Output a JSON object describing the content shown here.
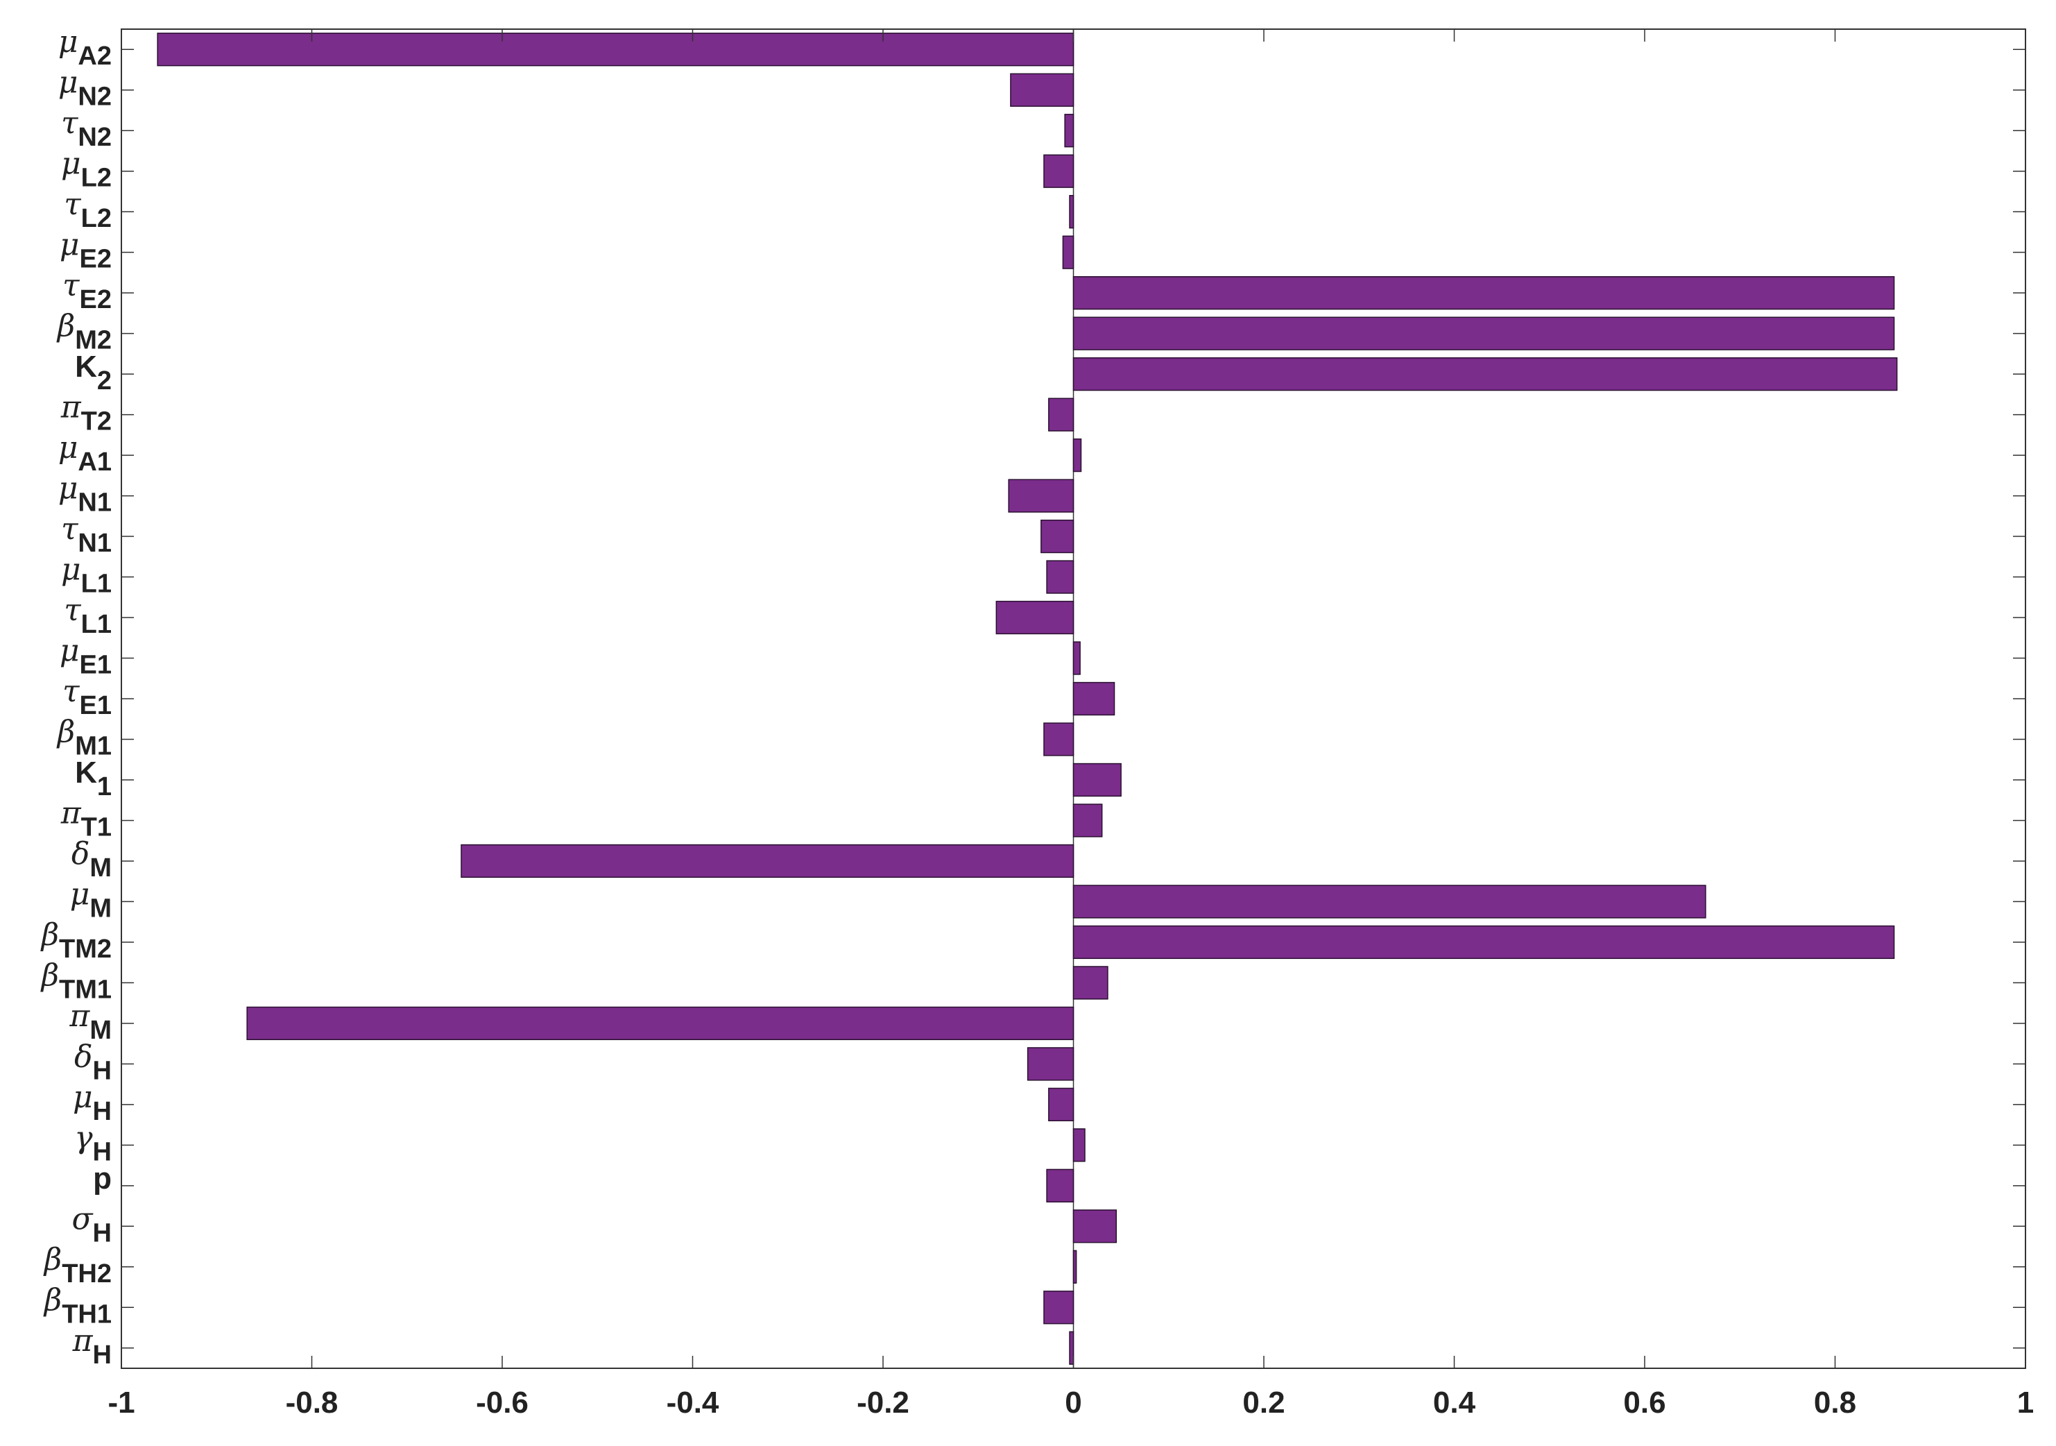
{
  "chart_data": {
    "type": "bar",
    "orientation": "horizontal",
    "title": "",
    "xlabel": "",
    "ylabel": "",
    "xlim": [
      -1,
      1
    ],
    "x_ticks": [
      "-1",
      "-0.8",
      "-0.6",
      "-0.4",
      "-0.2",
      "0",
      "0.2",
      "0.4",
      "0.6",
      "0.8",
      "1"
    ],
    "grid": false,
    "bar_color": "#7b2d8b",
    "categories": [
      {
        "main": "μ",
        "sub": "A2",
        "value": -0.962
      },
      {
        "main": "μ",
        "sub": "N2",
        "value": -0.066
      },
      {
        "main": "τ",
        "sub": "N2",
        "value": -0.009
      },
      {
        "main": "μ",
        "sub": "L2",
        "value": -0.031
      },
      {
        "main": "τ",
        "sub": "L2",
        "value": -0.004
      },
      {
        "main": "μ",
        "sub": "E2",
        "value": -0.011
      },
      {
        "main": "τ",
        "sub": "E2",
        "value": 0.862
      },
      {
        "main": "β",
        "sub": "M2",
        "value": 0.862
      },
      {
        "main": "K",
        "sub": "2",
        "value": 0.865
      },
      {
        "main": "π",
        "sub": "T2",
        "value": -0.026
      },
      {
        "main": "μ",
        "sub": "A1",
        "value": 0.008
      },
      {
        "main": "μ",
        "sub": "N1",
        "value": -0.068
      },
      {
        "main": "τ",
        "sub": "N1",
        "value": -0.034
      },
      {
        "main": "μ",
        "sub": "L1",
        "value": -0.028
      },
      {
        "main": "τ",
        "sub": "L1",
        "value": -0.081
      },
      {
        "main": "μ",
        "sub": "E1",
        "value": 0.007
      },
      {
        "main": "τ",
        "sub": "E1",
        "value": 0.043
      },
      {
        "main": "β",
        "sub": "M1",
        "value": -0.031
      },
      {
        "main": "K",
        "sub": "1",
        "value": 0.05
      },
      {
        "main": "π",
        "sub": "T1",
        "value": 0.03
      },
      {
        "main": "δ",
        "sub": "M",
        "value": -0.643
      },
      {
        "main": "μ",
        "sub": "M",
        "value": 0.664
      },
      {
        "main": "β",
        "sub": "TM2",
        "value": 0.862
      },
      {
        "main": "β",
        "sub": "TM1",
        "value": 0.036
      },
      {
        "main": "π",
        "sub": "M",
        "value": -0.868
      },
      {
        "main": "δ",
        "sub": "H",
        "value": -0.048
      },
      {
        "main": "μ",
        "sub": "H",
        "value": -0.026
      },
      {
        "main": "γ",
        "sub": "H",
        "value": 0.012
      },
      {
        "main": "p",
        "sub": "",
        "value": -0.028
      },
      {
        "main": "σ",
        "sub": "H",
        "value": 0.045
      },
      {
        "main": "β",
        "sub": "TH2",
        "value": 0.003
      },
      {
        "main": "β",
        "sub": "TH1",
        "value": -0.031
      },
      {
        "main": "π",
        "sub": "H",
        "value": -0.004
      }
    ]
  }
}
